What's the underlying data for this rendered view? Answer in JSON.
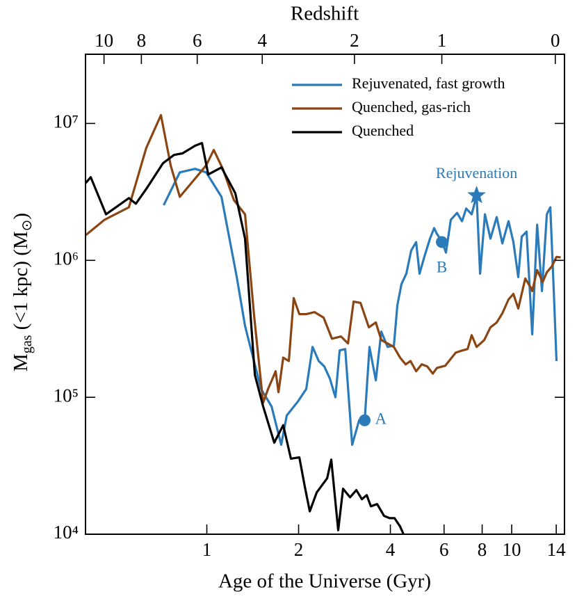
{
  "chart_data": {
    "type": "line",
    "xlabel": "Age of the Universe (Gyr)",
    "ylabel": [
      "M",
      "gas",
      " (<1 kpc) (M",
      "⊙",
      ")"
    ],
    "x2label": "Redshift",
    "xscale": "log",
    "yscale": "log",
    "xlim": [
      0.4,
      14.9
    ],
    "ylim": [
      10000,
      32000000
    ],
    "xticks": [
      1,
      2,
      4,
      6,
      8,
      10,
      14
    ],
    "yticks": [
      {
        "value": 10000,
        "label": "10⁴"
      },
      {
        "value": 100000,
        "label": "10⁵"
      },
      {
        "value": 1000000,
        "label": "10⁶"
      },
      {
        "value": 10000000,
        "label": "10⁷"
      }
    ],
    "x2ticks": [
      {
        "value": 0.46,
        "label": "10"
      },
      {
        "value": 0.61,
        "label": "8"
      },
      {
        "value": 0.93,
        "label": "6"
      },
      {
        "value": 1.52,
        "label": "4"
      },
      {
        "value": 3.05,
        "label": "2"
      },
      {
        "value": 5.9,
        "label": "1"
      },
      {
        "value": 13.9,
        "label": "0"
      }
    ],
    "legend": "upper right",
    "series": [
      {
        "name": "Rejuvenated, fast growth",
        "color": "#2b7bba",
        "x": [
          0.722,
          0.815,
          0.915,
          0.995,
          1.117,
          1.254,
          1.335,
          1.506,
          1.63,
          1.754,
          1.829,
          1.989,
          2.119,
          2.222,
          2.329,
          2.429,
          2.533,
          2.642,
          2.727,
          2.844,
          2.997,
          3.159,
          3.294,
          3.417,
          3.583,
          3.736,
          3.917,
          4.107,
          4.216,
          4.35,
          4.513,
          4.682,
          4.858,
          4.987,
          5.174,
          5.395,
          5.568,
          5.686,
          5.899,
          6.088,
          6.316,
          6.622,
          6.87,
          7.09,
          7.394,
          7.671,
          7.875,
          8.17,
          8.52,
          8.931,
          9.316,
          9.766,
          10.13,
          10.51,
          10.79,
          11.19,
          11.68,
          12.12,
          12.57,
          13.04,
          13.39,
          13.74,
          14.03
        ],
        "values": [
          2530000,
          4390000,
          4660000,
          4390000,
          2910000,
          754000,
          332000,
          115000,
          85800,
          45000,
          73700,
          93100,
          115000,
          233000,
          184000,
          168000,
          137000,
          100000,
          220000,
          225000,
          45000,
          67900,
          67900,
          233000,
          133000,
          302000,
          233000,
          239000,
          471000,
          671000,
          800000,
          1180000,
          1360000,
          800000,
          1070000,
          1440000,
          1720000,
          1560000,
          1390000,
          1140000,
          1980000,
          2220000,
          1930000,
          2390000,
          2170000,
          2980000,
          800000,
          2170000,
          1440000,
          2070000,
          1330000,
          1930000,
          1360000,
          754000,
          1490000,
          1620000,
          288000,
          1820000,
          597000,
          2170000,
          2440000,
          597000,
          184000
        ]
      },
      {
        "name": "Quenched, gas-rich",
        "color": "#8b4513",
        "x": [
          0.401,
          0.462,
          0.555,
          0.633,
          0.707,
          0.761,
          0.815,
          0.891,
          0.995,
          1.054,
          1.128,
          1.227,
          1.335,
          1.429,
          1.53,
          1.588,
          1.682,
          1.718,
          1.781,
          1.858,
          1.928,
          2.011,
          2.119,
          2.257,
          2.416,
          2.573,
          2.755,
          2.904,
          3.029,
          3.192,
          3.4,
          3.583,
          3.736,
          3.917,
          4.107,
          4.305,
          4.489,
          4.657,
          4.858,
          5.068,
          5.284,
          5.511,
          5.686,
          6.056,
          6.553,
          6.906,
          7.165,
          7.394,
          7.671,
          8.127,
          8.52,
          8.931,
          9.316,
          9.766,
          10.13,
          10.51,
          11.08,
          11.55,
          11.68,
          12.12,
          12.64,
          13.04,
          13.53,
          14.03,
          14.48
        ],
        "values": [
          1530000,
          1980000,
          2440000,
          6630000,
          11500000,
          4940000,
          2910000,
          3680000,
          4940000,
          6400000,
          4660000,
          2750000,
          2170000,
          395000,
          91000,
          115000,
          155000,
          109000,
          195000,
          184000,
          530000,
          405000,
          405000,
          419000,
          382000,
          268000,
          278000,
          247000,
          500000,
          489000,
          324000,
          352000,
          262000,
          247000,
          233000,
          195000,
          174000,
          184000,
          155000,
          174000,
          168000,
          149000,
          164000,
          170000,
          212000,
          220000,
          225000,
          284000,
          233000,
          262000,
          324000,
          352000,
          410000,
          518000,
          569000,
          445000,
          737000,
          632000,
          597000,
          849000,
          695000,
          819000,
          900000,
          1060000,
          1050000
        ]
      },
      {
        "name": "Quenched",
        "color": "#000000",
        "x": [
          0.401,
          0.416,
          0.467,
          0.555,
          0.585,
          0.637,
          0.718,
          0.781,
          0.832,
          0.915,
          0.964,
          1.011,
          1.117,
          1.24,
          1.335,
          1.437,
          1.53,
          1.664,
          1.781,
          1.888,
          2.011,
          2.097,
          2.176,
          2.293,
          2.481,
          2.56,
          2.698,
          2.799,
          2.95,
          3.093,
          3.226,
          3.346,
          3.452,
          3.62,
          3.815,
          3.979,
          4.128,
          4.305,
          4.419
        ],
        "values": [
          3680000,
          4050000,
          2170000,
          2850000,
          2590000,
          3390000,
          5120000,
          5890000,
          6040000,
          6870000,
          7190000,
          4240000,
          4770000,
          3090000,
          1440000,
          146000,
          85800,
          46600,
          62500,
          35600,
          36400,
          22200,
          14700,
          20200,
          25600,
          35100,
          10700,
          21500,
          18600,
          21000,
          18000,
          19300,
          16000,
          16600,
          13600,
          13100,
          13100,
          11400,
          10000
        ]
      }
    ],
    "annotations": [
      {
        "text": "Rejuvenation",
        "x": 7.671,
        "y": 2980000,
        "marker": "star",
        "color": "#2b7bba"
      },
      {
        "text": "A",
        "x": 3.294,
        "y": 67900,
        "marker": "circle",
        "color": "#2b7bba"
      },
      {
        "text": "B",
        "x": 5.899,
        "y": 1360000,
        "marker": "circle",
        "color": "#2b7bba"
      }
    ]
  }
}
